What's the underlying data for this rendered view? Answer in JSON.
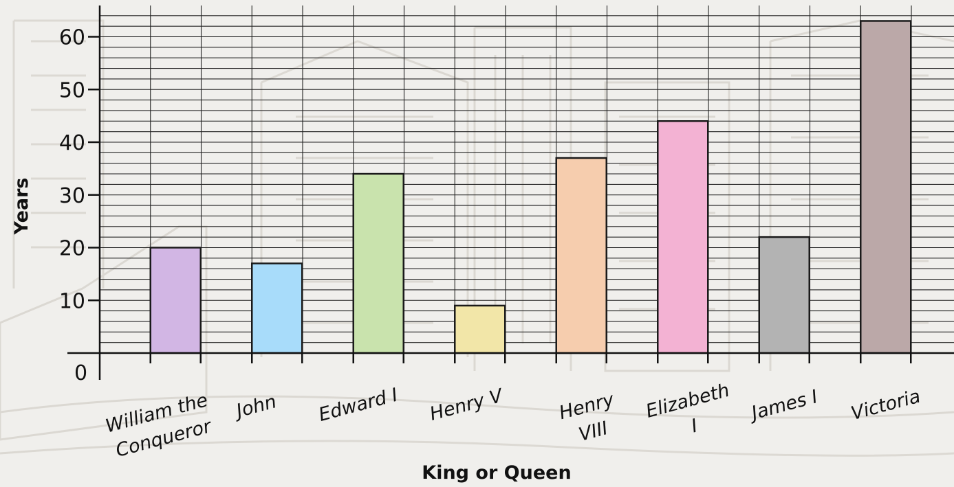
{
  "chart_data": {
    "type": "bar",
    "title": "",
    "xlabel": "King or Queen",
    "ylabel": "Years",
    "categories": [
      "William the Conqueror",
      "John",
      "Edward I",
      "Henry V",
      "Henry VIII",
      "Elizabeth I",
      "James I",
      "Victoria"
    ],
    "category_lines": [
      [
        "William the",
        "Conqueror"
      ],
      [
        "John"
      ],
      [
        "Edward I"
      ],
      [
        "Henry V"
      ],
      [
        "Henry",
        "VIII"
      ],
      [
        "Elizabeth",
        "I"
      ],
      [
        "James I"
      ],
      [
        "Victoria"
      ]
    ],
    "values": [
      20,
      17,
      34,
      9,
      37,
      44,
      22,
      63
    ],
    "colors": [
      "#d2b6e4",
      "#a8dcfa",
      "#c9e3ad",
      "#f2e6a8",
      "#f6cdae",
      "#f3b2d3",
      "#b3b3b3",
      "#bba8a8"
    ],
    "ylim": [
      0,
      65
    ],
    "y_ticks": [
      0,
      10,
      20,
      30,
      40,
      50,
      60
    ],
    "grid": true,
    "legend": "none"
  }
}
